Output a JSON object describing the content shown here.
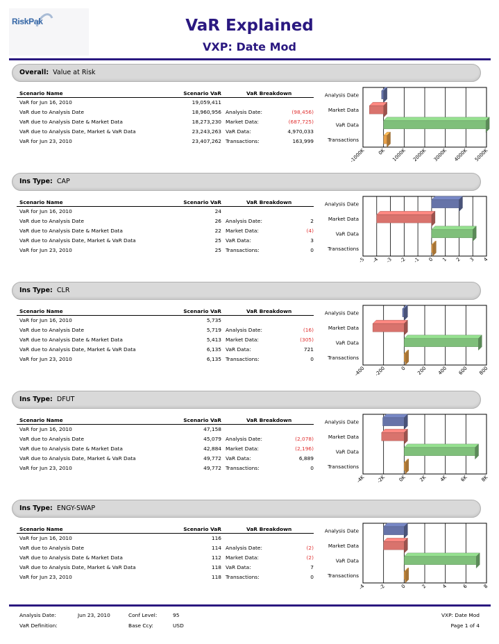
{
  "header": {
    "logo_text": "RiskPak",
    "title": "VaR Explained",
    "subtitle": "VXP: Date Mod"
  },
  "table_headers": {
    "name": "Scenario Name",
    "var": "Scenario VaR",
    "breakdown": "VaR Breakdown"
  },
  "chart_categories": [
    "Analysis Date",
    "Market Data",
    "VaR Data",
    "Transactions"
  ],
  "sections": [
    {
      "label": "Overall:",
      "value": "Value at Risk",
      "rows": [
        {
          "name": "VaR for Jun 16, 2010",
          "var": "19,059,411",
          "blabel": "",
          "bval": ""
        },
        {
          "name": "VaR due to Analysis Date",
          "var": "18,960,956",
          "blabel": "Analysis Date:",
          "bval": "(98,456)"
        },
        {
          "name": "VaR due to Analysis Date & Market Data",
          "var": "18,273,230",
          "blabel": "Market Data:",
          "bval": "(687,725)"
        },
        {
          "name": "VaR due to Analysis Date, Market & VaR Data",
          "var": "23,243,263",
          "blabel": "VaR Data:",
          "bval": "4,970,033"
        },
        {
          "name": "VaR for Jun 23, 2010",
          "var": "23,407,262",
          "blabel": "Transactions:",
          "bval": "163,999"
        }
      ]
    },
    {
      "label": "Ins Type:",
      "value": "CAP",
      "rows": [
        {
          "name": "VaR for Jun 16, 2010",
          "var": "24",
          "blabel": "",
          "bval": ""
        },
        {
          "name": "VaR due to Analysis Date",
          "var": "26",
          "blabel": "Analysis Date:",
          "bval": "2"
        },
        {
          "name": "VaR due to Analysis Date & Market Data",
          "var": "22",
          "blabel": "Market Data:",
          "bval": "(4)"
        },
        {
          "name": "VaR due to Analysis Date, Market & VaR Data",
          "var": "25",
          "blabel": "VaR Data:",
          "bval": "3"
        },
        {
          "name": "VaR for Jun 23, 2010",
          "var": "25",
          "blabel": "Transactions:",
          "bval": "0"
        }
      ]
    },
    {
      "label": "Ins Type:",
      "value": "CLR",
      "rows": [
        {
          "name": "VaR for Jun 16, 2010",
          "var": "5,735",
          "blabel": "",
          "bval": ""
        },
        {
          "name": "VaR due to Analysis Date",
          "var": "5,719",
          "blabel": "Analysis Date:",
          "bval": "(16)"
        },
        {
          "name": "VaR due to Analysis Date & Market Data",
          "var": "5,413",
          "blabel": "Market Data:",
          "bval": "(305)"
        },
        {
          "name": "VaR due to Analysis Date, Market & VaR Data",
          "var": "6,135",
          "blabel": "VaR Data:",
          "bval": "721"
        },
        {
          "name": "VaR for Jun 23, 2010",
          "var": "6,135",
          "blabel": "Transactions:",
          "bval": "0"
        }
      ]
    },
    {
      "label": "Ins Type:",
      "value": "DFUT",
      "rows": [
        {
          "name": "VaR for Jun 16, 2010",
          "var": "47,158",
          "blabel": "",
          "bval": ""
        },
        {
          "name": "VaR due to Analysis Date",
          "var": "45,079",
          "blabel": "Analysis Date:",
          "bval": "(2,078)"
        },
        {
          "name": "VaR due to Analysis Date & Market Data",
          "var": "42,884",
          "blabel": "Market Data:",
          "bval": "(2,196)"
        },
        {
          "name": "VaR due to Analysis Date, Market & VaR Data",
          "var": "49,772",
          "blabel": "VaR Data:",
          "bval": "6,889"
        },
        {
          "name": "VaR for Jun 23, 2010",
          "var": "49,772",
          "blabel": "Transactions:",
          "bval": "0"
        }
      ]
    },
    {
      "label": "Ins Type:",
      "value": "ENGY-SWAP",
      "rows": [
        {
          "name": "VaR for Jun 16, 2010",
          "var": "116",
          "blabel": "",
          "bval": ""
        },
        {
          "name": "VaR due to Analysis Date",
          "var": "114",
          "blabel": "Analysis Date:",
          "bval": "(2)"
        },
        {
          "name": "VaR due to Analysis Date & Market Data",
          "var": "112",
          "blabel": "Market Data:",
          "bval": "(2)"
        },
        {
          "name": "VaR due to Analysis Date, Market & VaR Data",
          "var": "118",
          "blabel": "VaR Data:",
          "bval": "7"
        },
        {
          "name": "VaR for Jun 23, 2010",
          "var": "118",
          "blabel": "Transactions:",
          "bval": "0"
        }
      ]
    }
  ],
  "chart_data": [
    {
      "type": "bar",
      "orientation": "horizontal",
      "categories": [
        "Analysis Date",
        "Market Data",
        "VaR Data",
        "Transactions"
      ],
      "values": [
        -98456,
        -687725,
        4970033,
        163999
      ],
      "xlim": [
        -1000000,
        5000000
      ],
      "ticks": [
        -1000000,
        0,
        1000000,
        2000000,
        3000000,
        4000000,
        5000000
      ],
      "tick_labels": [
        "-1000K",
        "0K",
        "1000K",
        "2000K",
        "3000K",
        "4000K",
        "5000K"
      ],
      "colors": [
        "#6673a8",
        "#d9736d",
        "#7fbf7a",
        "#e8a14a"
      ],
      "grid": true
    },
    {
      "type": "bar",
      "orientation": "horizontal",
      "categories": [
        "Analysis Date",
        "Market Data",
        "VaR Data",
        "Transactions"
      ],
      "values": [
        2,
        -4,
        3,
        0
      ],
      "xlim": [
        -5,
        4
      ],
      "ticks": [
        -5,
        -4,
        -3,
        -2,
        -1,
        0,
        1,
        2,
        3,
        4
      ],
      "tick_labels": [
        "-5",
        "-4",
        "-3",
        "-2",
        "-1",
        "0",
        "1",
        "2",
        "3",
        "4"
      ],
      "colors": [
        "#6673a8",
        "#d9736d",
        "#7fbf7a",
        "#e8a14a"
      ],
      "grid": true
    },
    {
      "type": "bar",
      "orientation": "horizontal",
      "categories": [
        "Analysis Date",
        "Market Data",
        "VaR Data",
        "Transactions"
      ],
      "values": [
        -16,
        -305,
        721,
        0
      ],
      "xlim": [
        -400,
        800
      ],
      "ticks": [
        -400,
        -200,
        0,
        200,
        400,
        600,
        800
      ],
      "tick_labels": [
        "-400",
        "-200",
        "0",
        "200",
        "400",
        "600",
        "800"
      ],
      "colors": [
        "#6673a8",
        "#d9736d",
        "#7fbf7a",
        "#e8a14a"
      ],
      "grid": true
    },
    {
      "type": "bar",
      "orientation": "horizontal",
      "categories": [
        "Analysis Date",
        "Market Data",
        "VaR Data",
        "Transactions"
      ],
      "values": [
        -2078,
        -2196,
        6889,
        0
      ],
      "xlim": [
        -4000,
        8000
      ],
      "ticks": [
        -4000,
        -2000,
        0,
        2000,
        4000,
        6000,
        8000
      ],
      "tick_labels": [
        "-4K",
        "-2K",
        "0K",
        "2K",
        "4K",
        "6K",
        "8K"
      ],
      "colors": [
        "#6673a8",
        "#d9736d",
        "#7fbf7a",
        "#e8a14a"
      ],
      "grid": true
    },
    {
      "type": "bar",
      "orientation": "horizontal",
      "categories": [
        "Analysis Date",
        "Market Data",
        "VaR Data",
        "Transactions"
      ],
      "values": [
        -2,
        -2,
        7,
        0
      ],
      "xlim": [
        -4,
        8
      ],
      "ticks": [
        -4,
        -2,
        0,
        2,
        4,
        6,
        8
      ],
      "tick_labels": [
        "-4",
        "-2",
        "0",
        "2",
        "4",
        "6",
        "8"
      ],
      "colors": [
        "#6673a8",
        "#d9736d",
        "#7fbf7a",
        "#e8a14a"
      ],
      "grid": true
    }
  ],
  "footer": {
    "analysis_date_label": "Analysis Date:",
    "analysis_date_value": "Jun 23, 2010",
    "conf_level_label": "Conf Level:",
    "conf_level_value": "95",
    "var_definition_label": "VaR Definition:",
    "base_ccy_label": "Base Ccy:",
    "base_ccy_value": "USD",
    "report_name": "VXP: Date Mod",
    "page": "Page 1 of 4"
  }
}
